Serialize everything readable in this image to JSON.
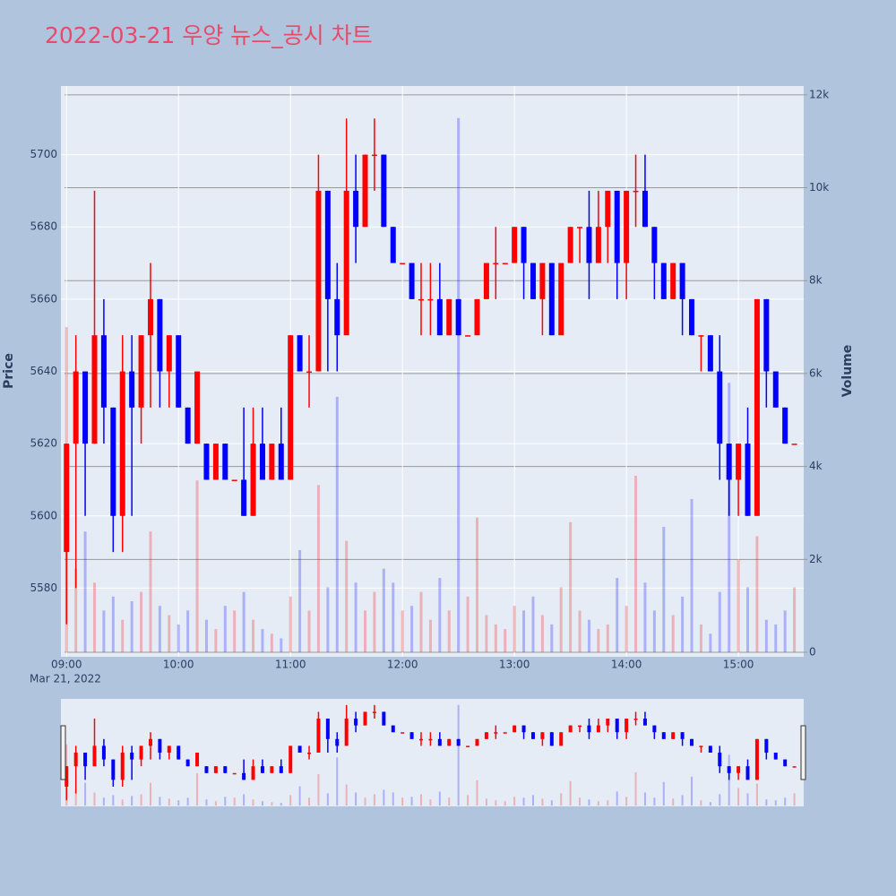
{
  "chart_data": {
    "type": "candlestick",
    "title": "2022-03-21 우양 뉴스_공시 차트",
    "ylabel": "Price",
    "y2label": "Volume",
    "x_date_label": "Mar 21, 2022",
    "increasing_color": "#ff0000",
    "decreasing_color": "#0000ff",
    "x": [
      "09:00",
      "09:05",
      "09:10",
      "09:15",
      "09:20",
      "09:25",
      "09:30",
      "09:35",
      "09:40",
      "09:45",
      "09:50",
      "09:55",
      "10:00",
      "10:05",
      "10:10",
      "10:15",
      "10:20",
      "10:25",
      "10:30",
      "10:35",
      "10:40",
      "10:45",
      "10:50",
      "10:55",
      "11:00",
      "11:05",
      "11:10",
      "11:15",
      "11:20",
      "11:25",
      "11:30",
      "11:35",
      "11:40",
      "11:45",
      "11:50",
      "11:55",
      "12:00",
      "12:05",
      "12:10",
      "12:15",
      "12:20",
      "12:25",
      "12:30",
      "12:35",
      "12:40",
      "12:45",
      "12:50",
      "12:55",
      "13:00",
      "13:05",
      "13:10",
      "13:15",
      "13:20",
      "13:25",
      "13:30",
      "13:35",
      "13:40",
      "13:45",
      "13:50",
      "13:55",
      "14:00",
      "14:05",
      "14:10",
      "14:15",
      "14:20",
      "14:25",
      "14:30",
      "14:35",
      "14:40",
      "14:45",
      "14:50",
      "14:55",
      "15:00",
      "15:05",
      "15:10",
      "15:15",
      "15:20",
      "15:25",
      "15:30"
    ],
    "open": [
      5590,
      5620,
      5640,
      5620,
      5650,
      5630,
      5600,
      5640,
      5630,
      5650,
      5660,
      5640,
      5650,
      5630,
      5620,
      5620,
      5610,
      5620,
      5610,
      5610,
      5600,
      5620,
      5610,
      5620,
      5610,
      5650,
      5640,
      5640,
      5690,
      5660,
      5650,
      5690,
      5680,
      5700,
      5700,
      5680,
      5670,
      5670,
      5660,
      5660,
      5660,
      5650,
      5660,
      5650,
      5650,
      5660,
      5670,
      5670,
      5670,
      5680,
      5670,
      5660,
      5670,
      5650,
      5670,
      5680,
      5680,
      5670,
      5680,
      5690,
      5670,
      5690,
      5690,
      5680,
      5670,
      5660,
      5670,
      5660,
      5650,
      5650,
      5640,
      5620,
      5610,
      5620,
      5600,
      5660,
      5640,
      5630,
      5620
    ],
    "high": [
      5620,
      5650,
      5640,
      5690,
      5660,
      5630,
      5650,
      5650,
      5650,
      5670,
      5660,
      5650,
      5650,
      5630,
      5640,
      5620,
      5620,
      5620,
      5610,
      5630,
      5630,
      5630,
      5620,
      5630,
      5650,
      5650,
      5650,
      5700,
      5690,
      5670,
      5710,
      5700,
      5700,
      5710,
      5700,
      5680,
      5670,
      5670,
      5670,
      5670,
      5670,
      5660,
      5660,
      5650,
      5660,
      5670,
      5680,
      5670,
      5680,
      5680,
      5670,
      5670,
      5670,
      5670,
      5680,
      5680,
      5690,
      5690,
      5690,
      5690,
      5690,
      5700,
      5700,
      5680,
      5670,
      5670,
      5670,
      5660,
      5650,
      5650,
      5650,
      5620,
      5620,
      5630,
      5660,
      5660,
      5640,
      5630,
      5620
    ],
    "low": [
      5570,
      5580,
      5600,
      5620,
      5620,
      5590,
      5590,
      5600,
      5620,
      5630,
      5630,
      5630,
      5630,
      5620,
      5620,
      5610,
      5610,
      5610,
      5610,
      5600,
      5600,
      5610,
      5610,
      5610,
      5610,
      5640,
      5630,
      5640,
      5640,
      5640,
      5650,
      5670,
      5680,
      5690,
      5680,
      5670,
      5670,
      5660,
      5650,
      5650,
      5650,
      5650,
      5650,
      5650,
      5650,
      5660,
      5660,
      5670,
      5670,
      5660,
      5660,
      5650,
      5650,
      5650,
      5670,
      5670,
      5660,
      5670,
      5670,
      5660,
      5660,
      5680,
      5680,
      5660,
      5660,
      5660,
      5650,
      5650,
      5640,
      5640,
      5610,
      5600,
      5600,
      5600,
      5600,
      5630,
      5630,
      5620,
      5620
    ],
    "close": [
      5620,
      5640,
      5620,
      5650,
      5630,
      5600,
      5640,
      5630,
      5650,
      5660,
      5640,
      5650,
      5630,
      5620,
      5640,
      5610,
      5620,
      5610,
      5610,
      5600,
      5620,
      5610,
      5620,
      5610,
      5650,
      5640,
      5640,
      5690,
      5660,
      5650,
      5690,
      5680,
      5700,
      5700,
      5680,
      5670,
      5670,
      5660,
      5660,
      5660,
      5650,
      5660,
      5650,
      5650,
      5660,
      5670,
      5670,
      5670,
      5680,
      5670,
      5660,
      5670,
      5650,
      5670,
      5680,
      5680,
      5670,
      5680,
      5690,
      5670,
      5690,
      5690,
      5680,
      5670,
      5660,
      5670,
      5660,
      5650,
      5650,
      5640,
      5620,
      5610,
      5620,
      5600,
      5660,
      5640,
      5630,
      5620,
      5620
    ],
    "volume": [
      7000,
      1800,
      2600,
      1500,
      900,
      1200,
      700,
      1100,
      1300,
      2600,
      1000,
      800,
      600,
      900,
      3700,
      700,
      500,
      1000,
      900,
      1300,
      700,
      500,
      400,
      300,
      1200,
      2200,
      900,
      3600,
      1400,
      5500,
      2400,
      1500,
      900,
      1300,
      1800,
      1500,
      900,
      1000,
      1300,
      700,
      1600,
      900,
      11500,
      1200,
      2900,
      800,
      600,
      500,
      1000,
      900,
      1200,
      800,
      600,
      1400,
      2800,
      900,
      700,
      500,
      600,
      1600,
      1000,
      3800,
      1500,
      900,
      2700,
      800,
      1200,
      3300,
      600,
      400,
      1300,
      5800,
      2000,
      1400,
      2500,
      700,
      600,
      900,
      1400
    ],
    "xlim": [
      "08:57",
      "15:35"
    ],
    "xticks": [
      "09:00",
      "10:00",
      "11:00",
      "12:00",
      "13:00",
      "14:00",
      "15:00"
    ],
    "ylim": [
      5561,
      5719
    ],
    "yticks": [
      5580,
      5600,
      5620,
      5640,
      5660,
      5680,
      5700
    ],
    "y2lim": [
      -96,
      12190
    ],
    "y2ticks": [
      0,
      {
        "value": 2000,
        "label": "2k"
      },
      {
        "value": 4000,
        "label": "4k"
      },
      {
        "value": 6000,
        "label": "6k"
      },
      {
        "value": 8000,
        "label": "8k"
      },
      {
        "value": 10000,
        "label": "10k"
      },
      {
        "value": 12000,
        "label": "12k"
      }
    ],
    "grid": true
  }
}
